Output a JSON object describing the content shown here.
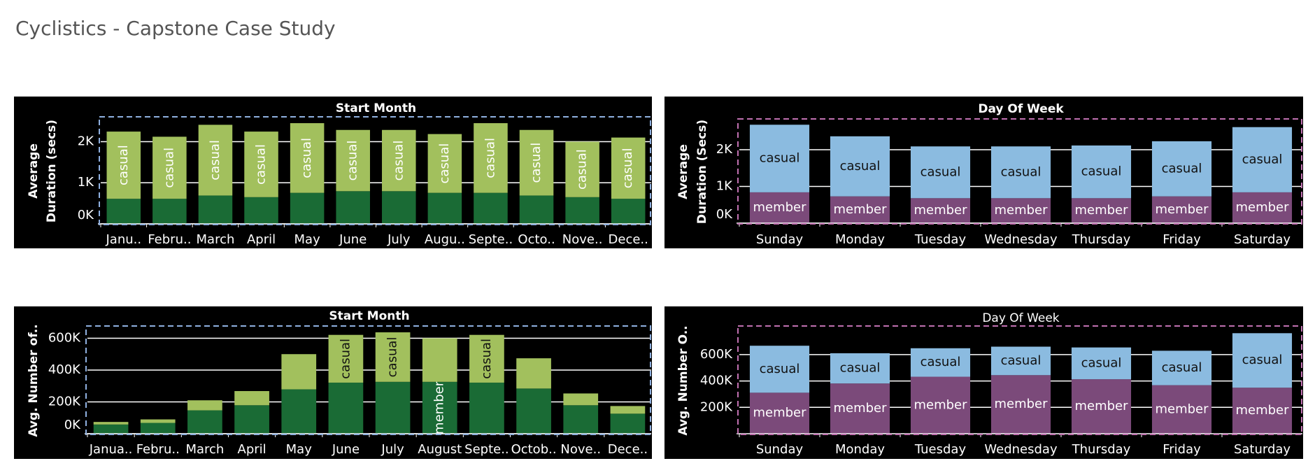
{
  "dashboard_title": "Cyclistics - Capstone Case Study",
  "chart_data": [
    {
      "type": "bar",
      "stacked": true,
      "x_label": "Start Month",
      "y_label": [
        "Average",
        "Duration (secs)"
      ],
      "categories": [
        "Janu..",
        "Febru..",
        "March",
        "April",
        "May",
        "June",
        "July",
        "Augu..",
        "Septe..",
        "Octo..",
        "Nove..",
        "Dece.."
      ],
      "series": [
        {
          "color": "#1a6b35",
          "values": [
            610,
            610,
            690,
            650,
            755,
            795,
            795,
            755,
            755,
            690,
            650,
            610
          ],
          "value_labels": [
            null,
            null,
            null,
            null,
            null,
            null,
            null,
            null,
            null,
            null,
            null,
            null
          ]
        },
        {
          "color": "#a2c05d",
          "values": [
            1635,
            1510,
            1720,
            1595,
            1695,
            1490,
            1490,
            1430,
            1695,
            1595,
            1350,
            1490
          ],
          "value_labels": [
            "casual",
            "casual",
            "casual",
            "casual",
            "casual",
            "casual",
            "casual",
            "casual",
            "casual",
            "casual",
            "casual",
            "casual"
          ]
        }
      ],
      "ylim": [
        0,
        2570
      ],
      "yticks": [
        {
          "value": 0,
          "label": "0K"
        },
        {
          "value": 1000,
          "label": "1K"
        },
        {
          "value": 2000,
          "label": "2K"
        }
      ],
      "grid": true
    },
    {
      "type": "bar",
      "stacked": true,
      "x_label": "Day Of Week",
      "y_label": [
        "Average",
        "Duration (Secs)"
      ],
      "categories": [
        "Sunday",
        "Monday",
        "Tuesday",
        "Wednesday",
        "Thursday",
        "Friday",
        "Saturday"
      ],
      "series": [
        {
          "color": "#7b4a7a",
          "values": [
            840,
            730,
            680,
            680,
            680,
            730,
            840
          ],
          "value_labels": [
            "member",
            "member",
            "member",
            "member",
            "member",
            "member",
            "member"
          ]
        },
        {
          "color": "#8bbbe0",
          "values": [
            1840,
            1635,
            1410,
            1410,
            1435,
            1500,
            1775
          ],
          "value_labels": [
            "casual",
            "casual",
            "casual",
            "casual",
            "casual",
            "casual",
            "casual"
          ]
        }
      ],
      "ylim": [
        0,
        2800
      ],
      "yticks": [
        {
          "value": 0,
          "label": "0K"
        },
        {
          "value": 1000,
          "label": "1K"
        },
        {
          "value": 2000,
          "label": "2K"
        }
      ],
      "grid": true
    },
    {
      "type": "bar",
      "stacked": true,
      "x_label": "Start Month",
      "y_label": [
        "Avg. Number of.."
      ],
      "categories": [
        "Janua..",
        "Febru..",
        "March",
        "April",
        "May",
        "June",
        "July",
        "August",
        "Septe..",
        "Octob..",
        "Nove..",
        "Dece.."
      ],
      "series": [
        {
          "color": "#1a6b35",
          "values": [
            58000,
            68000,
            147000,
            179000,
            279000,
            321000,
            326000,
            326000,
            321000,
            284000,
            179000,
            126000
          ],
          "value_labels": [
            null,
            null,
            null,
            null,
            null,
            null,
            null,
            "member",
            null,
            null,
            null,
            null
          ]
        },
        {
          "color": "#a2c05d",
          "values": [
            16000,
            22000,
            63000,
            89000,
            221000,
            300000,
            311000,
            274000,
            300000,
            190000,
            74000,
            48000
          ],
          "value_labels": [
            null,
            null,
            null,
            null,
            null,
            "casual",
            "casual",
            null,
            "casual",
            null,
            null,
            null
          ]
        }
      ],
      "ylim": [
        0,
        668000
      ],
      "yticks": [
        {
          "value": 0,
          "label": "0K"
        },
        {
          "value": 200000,
          "label": "200K"
        },
        {
          "value": 400000,
          "label": "400K"
        },
        {
          "value": 600000,
          "label": "600K"
        }
      ],
      "grid": true
    },
    {
      "type": "bar",
      "stacked": true,
      "x_label": "Day Of Week",
      "y_label": [
        "Avg. Number O.."
      ],
      "categories": [
        "Sunday",
        "Monday",
        "Tuesday",
        "Wednesday",
        "Thursday",
        "Friday",
        "Saturday"
      ],
      "series": [
        {
          "color": "#7b4a7a",
          "values": [
            311000,
            381000,
            432000,
            444000,
            413000,
            368000,
            349000
          ],
          "value_labels": [
            "member",
            "member",
            "member",
            "member",
            "member",
            "member",
            "member"
          ]
        },
        {
          "color": "#8bbbe0",
          "values": [
            356000,
            229000,
            216000,
            216000,
            241000,
            261000,
            413000
          ],
          "value_labels": [
            "casual",
            "casual",
            "casual",
            "casual",
            "casual",
            "casual",
            "casual"
          ]
        }
      ],
      "ylim": [
        0,
        806000
      ],
      "yticks": [
        {
          "value": 200000,
          "label": "200K"
        },
        {
          "value": 400000,
          "label": "400K"
        },
        {
          "value": 600000,
          "label": "600K"
        }
      ],
      "grid": true
    }
  ]
}
